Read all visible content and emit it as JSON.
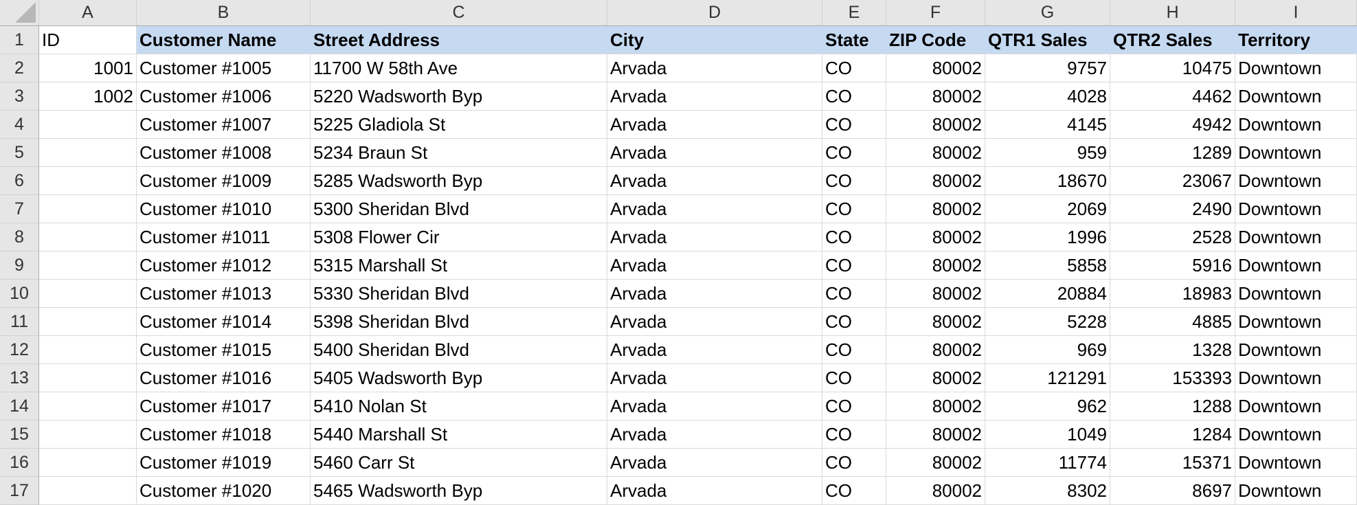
{
  "columns": [
    "A",
    "B",
    "C",
    "D",
    "E",
    "F",
    "G",
    "H",
    "I"
  ],
  "header": [
    "ID",
    "Customer Name",
    "Street Address",
    "City",
    "State",
    "ZIP Code",
    "QTR1 Sales",
    "QTR2 Sales",
    "Territory"
  ],
  "rows": [
    [
      "1001",
      "Customer #1005",
      "11700 W 58th Ave",
      "Arvada",
      "CO",
      "80002",
      "9757",
      "10475",
      "Downtown"
    ],
    [
      "1002",
      "Customer #1006",
      "5220 Wadsworth Byp",
      "Arvada",
      "CO",
      "80002",
      "4028",
      "4462",
      "Downtown"
    ],
    [
      "",
      "Customer #1007",
      "5225 Gladiola St",
      "Arvada",
      "CO",
      "80002",
      "4145",
      "4942",
      "Downtown"
    ],
    [
      "",
      "Customer #1008",
      "5234 Braun St",
      "Arvada",
      "CO",
      "80002",
      "959",
      "1289",
      "Downtown"
    ],
    [
      "",
      "Customer #1009",
      "5285 Wadsworth Byp",
      "Arvada",
      "CO",
      "80002",
      "18670",
      "23067",
      "Downtown"
    ],
    [
      "",
      "Customer #1010",
      "5300 Sheridan Blvd",
      "Arvada",
      "CO",
      "80002",
      "2069",
      "2490",
      "Downtown"
    ],
    [
      "",
      "Customer #1011",
      "5308 Flower Cir",
      "Arvada",
      "CO",
      "80002",
      "1996",
      "2528",
      "Downtown"
    ],
    [
      "",
      "Customer #1012",
      "5315 Marshall St",
      "Arvada",
      "CO",
      "80002",
      "5858",
      "5916",
      "Downtown"
    ],
    [
      "",
      "Customer #1013",
      "5330 Sheridan Blvd",
      "Arvada",
      "CO",
      "80002",
      "20884",
      "18983",
      "Downtown"
    ],
    [
      "",
      "Customer #1014",
      "5398 Sheridan Blvd",
      "Arvada",
      "CO",
      "80002",
      "5228",
      "4885",
      "Downtown"
    ],
    [
      "",
      "Customer #1015",
      "5400 Sheridan Blvd",
      "Arvada",
      "CO",
      "80002",
      "969",
      "1328",
      "Downtown"
    ],
    [
      "",
      "Customer #1016",
      "5405 Wadsworth Byp",
      "Arvada",
      "CO",
      "80002",
      "121291",
      "153393",
      "Downtown"
    ],
    [
      "",
      "Customer #1017",
      "5410 Nolan St",
      "Arvada",
      "CO",
      "80002",
      "962",
      "1288",
      "Downtown"
    ],
    [
      "",
      "Customer #1018",
      "5440 Marshall St",
      "Arvada",
      "CO",
      "80002",
      "1049",
      "1284",
      "Downtown"
    ],
    [
      "",
      "Customer #1019",
      "5460 Carr St",
      "Arvada",
      "CO",
      "80002",
      "11774",
      "15371",
      "Downtown"
    ],
    [
      "",
      "Customer #1020",
      "5465 Wadsworth Byp",
      "Arvada",
      "CO",
      "80002",
      "8302",
      "8697",
      "Downtown"
    ]
  ],
  "colors": {
    "header_fill": "#c5d9f1",
    "grid_header": "#e6e6e6"
  }
}
